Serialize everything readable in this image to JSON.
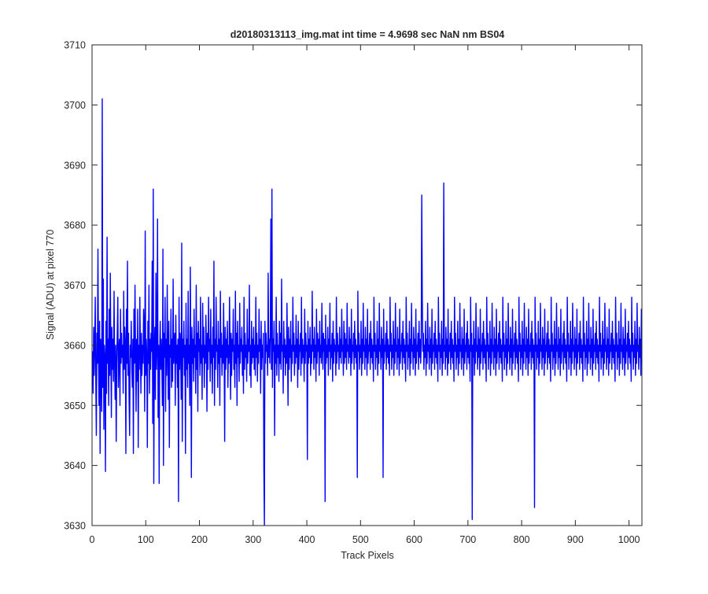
{
  "chart_data": {
    "type": "line",
    "title": "d20180313113_img.mat int time = 4.9698 sec  NaN nm BS04",
    "xlabel": "Track Pixels",
    "ylabel": "Signal (ADU) at pixel 770",
    "xlim": [
      0,
      1024
    ],
    "ylim": [
      3630,
      3710
    ],
    "xticks": [
      0,
      100,
      200,
      300,
      400,
      500,
      600,
      700,
      800,
      900,
      1000
    ],
    "yticks": [
      3630,
      3640,
      3650,
      3660,
      3670,
      3680,
      3690,
      3700,
      3710
    ],
    "grid": false,
    "legend": "none",
    "series": [
      {
        "name": "",
        "color": "#0000ff",
        "x_start": 1,
        "x_step": 1,
        "values": [
          3659,
          3652,
          3663,
          3655,
          3660,
          3668,
          3654,
          3645,
          3662,
          3657,
          3676,
          3658,
          3650,
          3664,
          3642,
          3661,
          3656,
          3649,
          3701,
          3653,
          3671,
          3646,
          3660,
          3658,
          3639,
          3664,
          3652,
          3678,
          3657,
          3661,
          3650,
          3666,
          3655,
          3672,
          3659,
          3648,
          3663,
          3656,
          3661,
          3654,
          3669,
          3658,
          3651,
          3660,
          3644,
          3657,
          3662,
          3668,
          3653,
          3659,
          3661,
          3650,
          3666,
          3657,
          3662,
          3658,
          3660,
          3652,
          3669,
          3656,
          3663,
          3660,
          3642,
          3666,
          3657,
          3674,
          3655,
          3662,
          3651,
          3645,
          3660,
          3658,
          3664,
          3656,
          3653,
          3661,
          3642,
          3666,
          3657,
          3670,
          3659,
          3649,
          3661,
          3654,
          3666,
          3643,
          3660,
          3656,
          3668,
          3659,
          3652,
          3662,
          3655,
          3660,
          3657,
          3666,
          3663,
          3649,
          3679,
          3655,
          3661,
          3658,
          3643,
          3664,
          3657,
          3670,
          3652,
          3661,
          3656,
          3662,
          3659,
          3674,
          3647,
          3686,
          3637,
          3659,
          3663,
          3651,
          3672,
          3656,
          3660,
          3681,
          3648,
          3660,
          3637,
          3659,
          3664,
          3656,
          3661,
          3657,
          3650,
          3676,
          3640,
          3662,
          3658,
          3668,
          3649,
          3661,
          3655,
          3670,
          3659,
          3651,
          3664,
          3643,
          3660,
          3658,
          3666,
          3653,
          3661,
          3654,
          3671,
          3657,
          3660,
          3662,
          3650,
          3665,
          3657,
          3660,
          3653,
          3661,
          3634,
          3668,
          3656,
          3662,
          3659,
          3651,
          3677,
          3644,
          3661,
          3658,
          3664,
          3655,
          3660,
          3642,
          3667,
          3656,
          3661,
          3653,
          3669,
          3657,
          3660,
          3650,
          3673,
          3659,
          3638,
          3663,
          3657,
          3661,
          3654,
          3666,
          3658,
          3660,
          3652,
          3670,
          3656,
          3662,
          3649,
          3664,
          3659,
          3661,
          3655,
          3668,
          3657,
          3660,
          3651,
          3667,
          3658,
          3663,
          3653,
          3660,
          3657,
          3665,
          3660,
          3649,
          3662,
          3656,
          3668,
          3659,
          3661,
          3654,
          3666,
          3657,
          3660,
          3652,
          3663,
          3658,
          3674,
          3650,
          3661,
          3656,
          3668,
          3659,
          3660,
          3653,
          3664,
          3657,
          3661,
          3650,
          3669,
          3658,
          3662,
          3655,
          3660,
          3657,
          3667,
          3659,
          3644,
          3663,
          3656,
          3661,
          3658,
          3664,
          3653,
          3660,
          3657,
          3668,
          3660,
          3651,
          3662,
          3655,
          3661,
          3659,
          3666,
          3656,
          3660,
          3653,
          3669,
          3657,
          3662,
          3650,
          3664,
          3658,
          3660,
          3654,
          3667,
          3657,
          3661,
          3659,
          3663,
          3655,
          3660,
          3652,
          3668,
          3656,
          3662,
          3658,
          3660,
          3654,
          3666,
          3657,
          3661,
          3659,
          3670,
          3655,
          3660,
          3653,
          3664,
          3657,
          3661,
          3658,
          3663,
          3656,
          3660,
          3655,
          3668,
          3658,
          3662,
          3654,
          3660,
          3657,
          3666,
          3659,
          3661,
          3652,
          3664,
          3656,
          3660,
          3658,
          3662,
          3639,
          3630,
          3664,
          3657,
          3662,
          3659,
          3660,
          3655,
          3672,
          3658,
          3661,
          3657,
          3663,
          3681,
          3656,
          3686,
          3653,
          3661,
          3659,
          3664,
          3645,
          3660,
          3657,
          3668,
          3655,
          3662,
          3658,
          3660,
          3654,
          3664,
          3657,
          3662,
          3656,
          3671,
          3659,
          3660,
          3652,
          3664,
          3658,
          3661,
          3655,
          3660,
          3657,
          3667,
          3659,
          3650,
          3663,
          3656,
          3661,
          3658,
          3664,
          3654,
          3660,
          3657,
          3668,
          3659,
          3662,
          3655,
          3660,
          3657,
          3665,
          3658,
          3661,
          3653,
          3664,
          3656,
          3660,
          3659,
          3662,
          3655,
          3668,
          3657,
          3661,
          3658,
          3660,
          3654,
          3666,
          3657,
          3662,
          3659,
          3660,
          3641,
          3664,
          3657,
          3661,
          3658,
          3663,
          3655,
          3660,
          3657,
          3669,
          3659,
          3661,
          3656,
          3663,
          3658,
          3660,
          3654,
          3666,
          3657,
          3662,
          3659,
          3661,
          3655,
          3664,
          3658,
          3660,
          3657,
          3667,
          3660,
          3656,
          3662,
          3659,
          3661,
          3634,
          3665,
          3657,
          3660,
          3658,
          3663,
          3655,
          3661,
          3659,
          3667,
          3656,
          3660,
          3658,
          3662,
          3654,
          3664,
          3657,
          3661,
          3659,
          3660,
          3655,
          3668,
          3657,
          3662,
          3659,
          3660,
          3656,
          3663,
          3658,
          3661,
          3657,
          3666,
          3659,
          3660,
          3655,
          3664,
          3657,
          3662,
          3658,
          3661,
          3656,
          3667,
          3659,
          3660,
          3657,
          3663,
          3658,
          3661,
          3655,
          3666,
          3657,
          3660,
          3659,
          3662,
          3656,
          3664,
          3658,
          3661,
          3657,
          3660,
          3638,
          3669,
          3659,
          3662,
          3656,
          3660,
          3658,
          3664,
          3655,
          3661,
          3657,
          3667,
          3659,
          3660,
          3656,
          3663,
          3658,
          3661,
          3655,
          3666,
          3657,
          3660,
          3659,
          3662,
          3656,
          3664,
          3658,
          3661,
          3657,
          3660,
          3654,
          3668,
          3659,
          3662,
          3656,
          3660,
          3658,
          3664,
          3655,
          3661,
          3657,
          3667,
          3659,
          3660,
          3656,
          3663,
          3658,
          3661,
          3638,
          3666,
          3657,
          3660,
          3659,
          3662,
          3656,
          3664,
          3658,
          3661,
          3657,
          3660,
          3655,
          3668,
          3659,
          3662,
          3656,
          3660,
          3658,
          3664,
          3655,
          3661,
          3657,
          3667,
          3659,
          3660,
          3656,
          3663,
          3658,
          3661,
          3655,
          3666,
          3657,
          3660,
          3659,
          3662,
          3656,
          3664,
          3658,
          3661,
          3657,
          3660,
          3654,
          3668,
          3659,
          3662,
          3656,
          3660,
          3658,
          3664,
          3655,
          3661,
          3657,
          3667,
          3659,
          3660,
          3656,
          3663,
          3658,
          3661,
          3655,
          3666,
          3657,
          3660,
          3659,
          3662,
          3656,
          3664,
          3658,
          3661,
          3657,
          3660,
          3685,
          3668,
          3659,
          3662,
          3656,
          3660,
          3658,
          3664,
          3655,
          3661,
          3657,
          3667,
          3659,
          3660,
          3656,
          3663,
          3658,
          3661,
          3655,
          3666,
          3657,
          3660,
          3659,
          3662,
          3656,
          3664,
          3658,
          3661,
          3657,
          3660,
          3654,
          3668,
          3659,
          3662,
          3656,
          3660,
          3658,
          3664,
          3655,
          3661,
          3657,
          3687,
          3659,
          3660,
          3656,
          3663,
          3658,
          3661,
          3655,
          3666,
          3657,
          3660,
          3659,
          3662,
          3656,
          3664,
          3658,
          3661,
          3657,
          3660,
          3654,
          3668,
          3659,
          3662,
          3656,
          3660,
          3658,
          3664,
          3655,
          3661,
          3657,
          3667,
          3659,
          3660,
          3656,
          3663,
          3658,
          3661,
          3655,
          3666,
          3657,
          3660,
          3659,
          3662,
          3656,
          3664,
          3658,
          3661,
          3657,
          3660,
          3654,
          3668,
          3659,
          3662,
          3631,
          3660,
          3658,
          3664,
          3655,
          3661,
          3657,
          3667,
          3659,
          3660,
          3656,
          3663,
          3658,
          3661,
          3655,
          3666,
          3657,
          3660,
          3659,
          3662,
          3656,
          3664,
          3658,
          3661,
          3657,
          3660,
          3654,
          3668,
          3659,
          3662,
          3656,
          3660,
          3658,
          3664,
          3655,
          3661,
          3657,
          3667,
          3659,
          3660,
          3656,
          3663,
          3658,
          3661,
          3655,
          3666,
          3657,
          3660,
          3659,
          3662,
          3656,
          3664,
          3658,
          3661,
          3657,
          3660,
          3654,
          3668,
          3659,
          3662,
          3656,
          3660,
          3658,
          3664,
          3655,
          3661,
          3657,
          3667,
          3659,
          3660,
          3656,
          3663,
          3658,
          3661,
          3655,
          3666,
          3657,
          3660,
          3659,
          3662,
          3656,
          3664,
          3658,
          3661,
          3657,
          3660,
          3654,
          3668,
          3659,
          3662,
          3656,
          3660,
          3658,
          3664,
          3655,
          3661,
          3657,
          3667,
          3659,
          3660,
          3656,
          3663,
          3658,
          3661,
          3655,
          3666,
          3657,
          3660,
          3659,
          3662,
          3656,
          3664,
          3658,
          3661,
          3657,
          3660,
          3633,
          3668,
          3659,
          3662,
          3656,
          3660,
          3658,
          3664,
          3655,
          3661,
          3657,
          3667,
          3659,
          3660,
          3656,
          3663,
          3658,
          3661,
          3655,
          3666,
          3657,
          3660,
          3659,
          3662,
          3656,
          3664,
          3658,
          3661,
          3657,
          3660,
          3654,
          3668,
          3659,
          3662,
          3656,
          3660,
          3658,
          3664,
          3655,
          3661,
          3657,
          3667,
          3659,
          3660,
          3656,
          3663,
          3658,
          3661,
          3655,
          3666,
          3657,
          3660,
          3659,
          3662,
          3656,
          3664,
          3658,
          3661,
          3657,
          3660,
          3654,
          3668,
          3659,
          3662,
          3656,
          3660,
          3658,
          3664,
          3655,
          3661,
          3657,
          3667,
          3659,
          3660,
          3656,
          3663,
          3658,
          3661,
          3655,
          3666,
          3657,
          3660,
          3659,
          3662,
          3656,
          3664,
          3658,
          3661,
          3657,
          3660,
          3654,
          3668,
          3659,
          3662,
          3656,
          3660,
          3658,
          3664,
          3655,
          3661,
          3657,
          3667,
          3659,
          3660,
          3656,
          3663,
          3658,
          3661,
          3655,
          3666,
          3657,
          3660,
          3659,
          3662,
          3656,
          3664,
          3658,
          3661,
          3657,
          3660,
          3654,
          3668,
          3659,
          3662,
          3656,
          3660,
          3658,
          3664,
          3655,
          3661,
          3657,
          3667,
          3659,
          3660,
          3656,
          3663,
          3658,
          3661,
          3655,
          3666,
          3657,
          3660,
          3659,
          3662,
          3656,
          3664,
          3658,
          3661,
          3657,
          3660,
          3654,
          3668,
          3659,
          3662,
          3656,
          3660,
          3658,
          3664,
          3655,
          3661,
          3657,
          3667,
          3659,
          3660,
          3656,
          3663,
          3658,
          3661,
          3655,
          3666,
          3657,
          3660,
          3659,
          3662,
          3656,
          3664,
          3658,
          3661,
          3657,
          3660,
          3654,
          3668,
          3659,
          3662,
          3656,
          3660,
          3658,
          3664,
          3655,
          3661,
          3657,
          3667,
          3659,
          3660,
          3656,
          3663,
          3658,
          3661,
          3655,
          3666,
          3657,
          3660,
          3659,
          3662,
          3656,
          3664,
          3658,
          3661,
          3657,
          3660,
          3654,
          3668,
          3659,
          3662,
          3656,
          3660,
          3658,
          3664,
          3655,
          3661,
          3657,
          3667,
          3659,
          3660,
          3656,
          3663,
          3658,
          3661,
          3655,
          3666,
          3657,
          3660,
          3659,
          3662,
          3656,
          3664,
          3658,
          3661,
          3657,
          3660,
          3654,
          3668,
          3659,
          3662,
          3656,
          3660,
          3658,
          3664,
          3655,
          3661,
          3657,
          3667,
          3659,
          3660,
          3656,
          3663,
          3658,
          3661,
          3655,
          3666,
          3657,
          3660,
          3659,
          3662,
          3656,
          3664,
          3658,
          3661,
          3657,
          3660,
          3654,
          3668,
          3659,
          3662,
          3656,
          3660,
          3658,
          3664,
          3655,
          3661,
          3657,
          3667,
          3659,
          3660,
          3656,
          3663,
          3658,
          3661,
          3655,
          3666,
          3657,
          3660,
          3659,
          3662,
          3656,
          3664,
          3658,
          3661,
          3657,
          3660,
          3654,
          3668,
          3659,
          3662,
          3656,
          3660,
          3658,
          3664,
          3655,
          3661,
          3657,
          3667,
          3659,
          3660,
          3656,
          3663,
          3658,
          3661,
          3655,
          3666,
          3657,
          3660,
          3659,
          3662,
          3656,
          3664,
          3658,
          3661,
          3657,
          3660,
          3654,
          3668,
          3659
        ]
      }
    ]
  }
}
